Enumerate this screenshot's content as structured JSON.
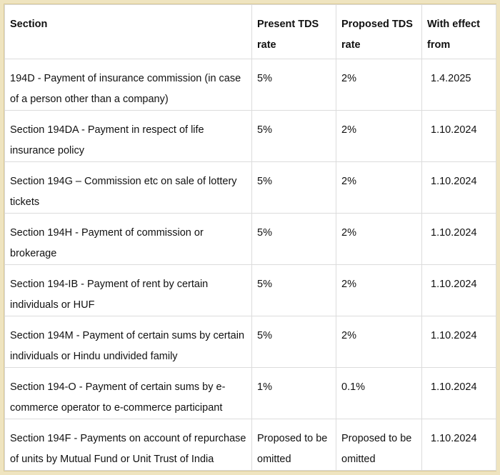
{
  "table": {
    "header": [
      "Section",
      "Present TDS rate",
      "Proposed TDS rate",
      "With effect from"
    ],
    "rows": [
      [
        "194D - Payment of insurance commission (in case of a person other than a company)",
        "5%",
        "2%",
        "1.4.2025"
      ],
      [
        "Section 194DA - Payment in respect of life insurance policy",
        "5%",
        "2%",
        "1.10.2024"
      ],
      [
        "Section 194G – Commission etc on sale of lottery tickets",
        "5%",
        "2%",
        "1.10.2024"
      ],
      [
        "Section 194H - Payment of commission or brokerage",
        "5%",
        "2%",
        "1.10.2024"
      ],
      [
        "Section 194-IB - Payment of rent by certain individuals or HUF",
        "5%",
        "2%",
        "1.10.2024"
      ],
      [
        "Section 194M - Payment of certain sums by certain individuals or Hindu undivided family",
        "5%",
        "2%",
        "1.10.2024"
      ],
      [
        "Section 194-O - Payment of certain sums by e-commerce operator to e-commerce participant",
        "1%",
        "0.1%",
        "1.10.2024"
      ],
      [
        "Section 194F - Payments on account of repurchase of units by Mutual Fund or Unit Trust of India",
        "Proposed to be omitted",
        "Proposed to be omitted",
        "1.10.2024"
      ]
    ]
  }
}
